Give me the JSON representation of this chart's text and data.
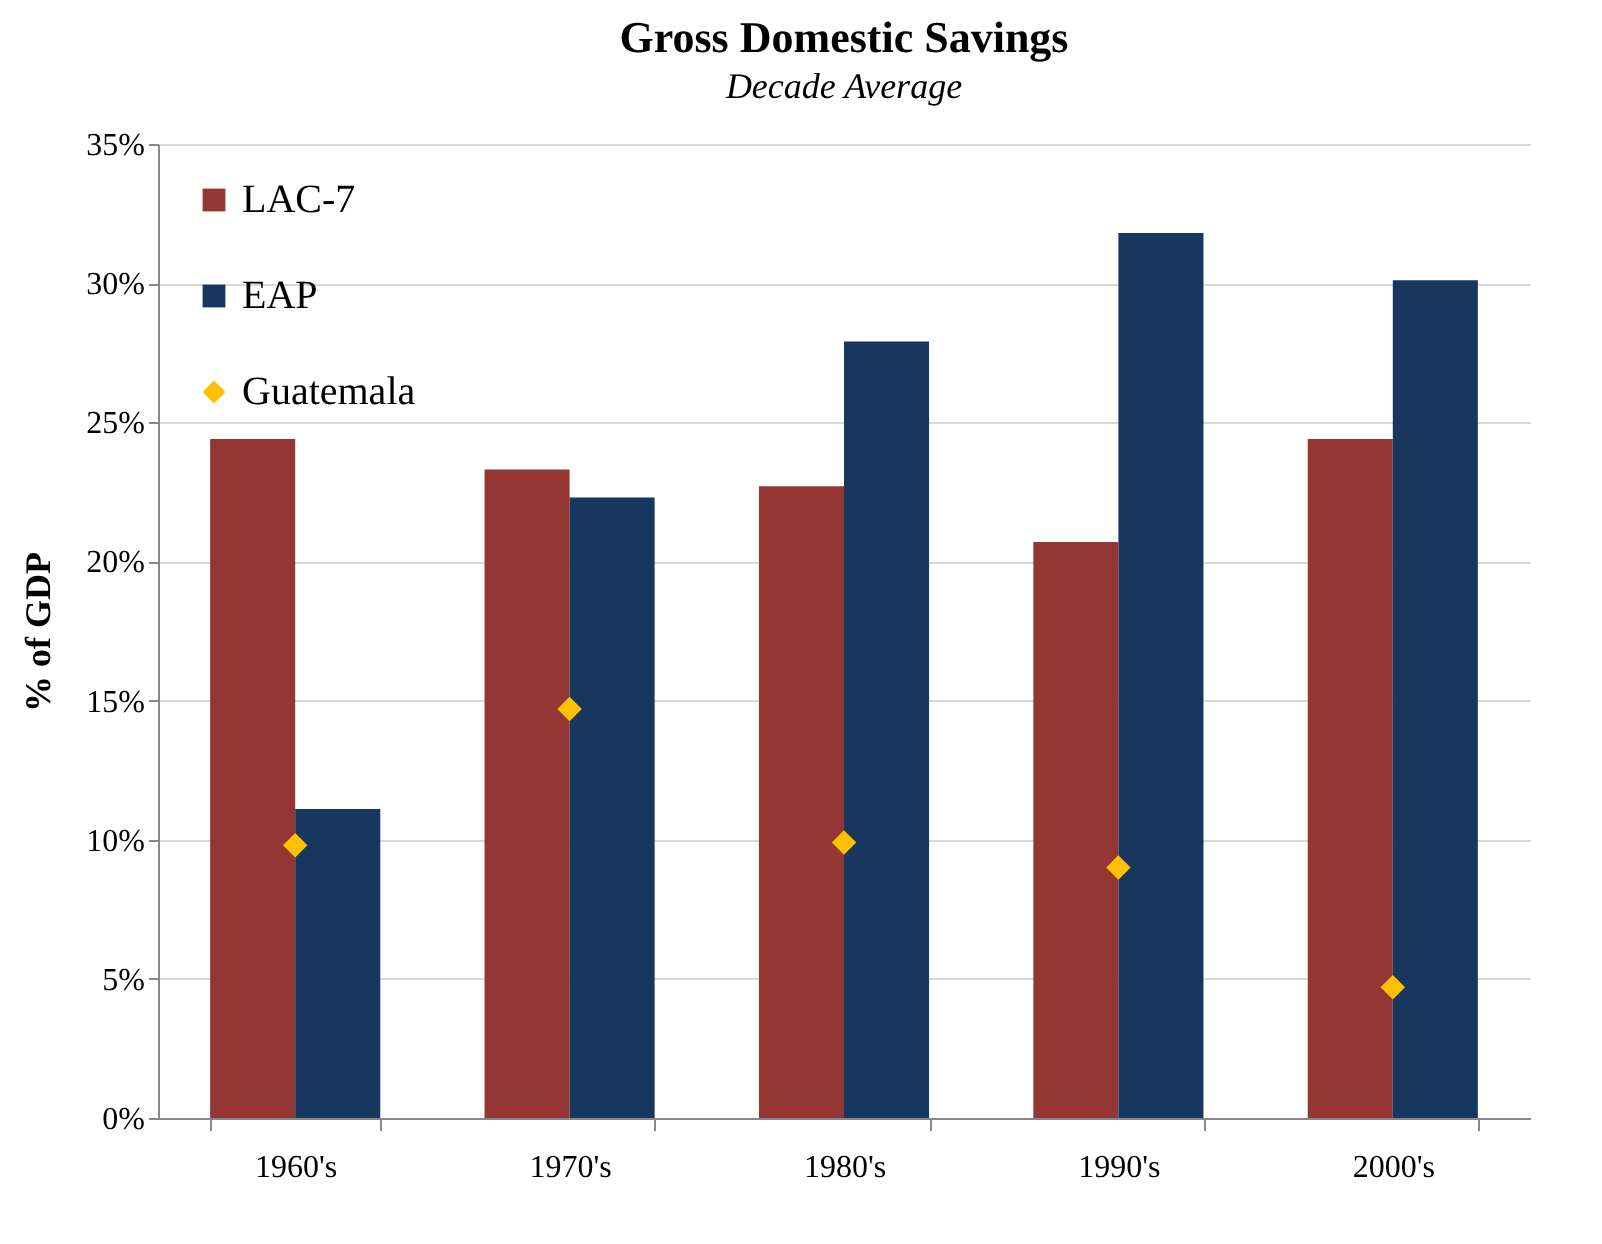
{
  "chart_data": {
    "type": "bar",
    "title": "Gross Domestic Savings",
    "subtitle": "Decade Average",
    "ylabel": "% of GDP",
    "categories": [
      "1960's",
      "1970's",
      "1980's",
      "1990's",
      "2000's"
    ],
    "series": [
      {
        "name": "LAC-7",
        "color": "#943634",
        "values": [
          24.4,
          23.3,
          22.7,
          20.7,
          24.4
        ]
      },
      {
        "name": "EAP",
        "color": "#17375e",
        "values": [
          11.1,
          22.3,
          27.9,
          31.8,
          30.1
        ]
      },
      {
        "name": "Guatemala",
        "type": "scatter",
        "marker": "diamond",
        "color": "#ffc000",
        "x": [
          "1960's",
          "1970's",
          "1980's",
          "1990's",
          "2000's"
        ],
        "values": [
          9.8,
          14.7,
          9.9,
          9.0,
          4.7
        ]
      }
    ],
    "ylim": [
      0,
      35
    ],
    "yticks": [
      {
        "value": 0,
        "label": "0%"
      },
      {
        "value": 5,
        "label": "5%"
      },
      {
        "value": 10,
        "label": "10%"
      },
      {
        "value": 15,
        "label": "15%"
      },
      {
        "value": 20,
        "label": "20%"
      },
      {
        "value": 25,
        "label": "25%"
      },
      {
        "value": 30,
        "label": "30%"
      },
      {
        "value": 35,
        "label": "35%"
      }
    ],
    "grid": "y",
    "legend": "top left"
  }
}
